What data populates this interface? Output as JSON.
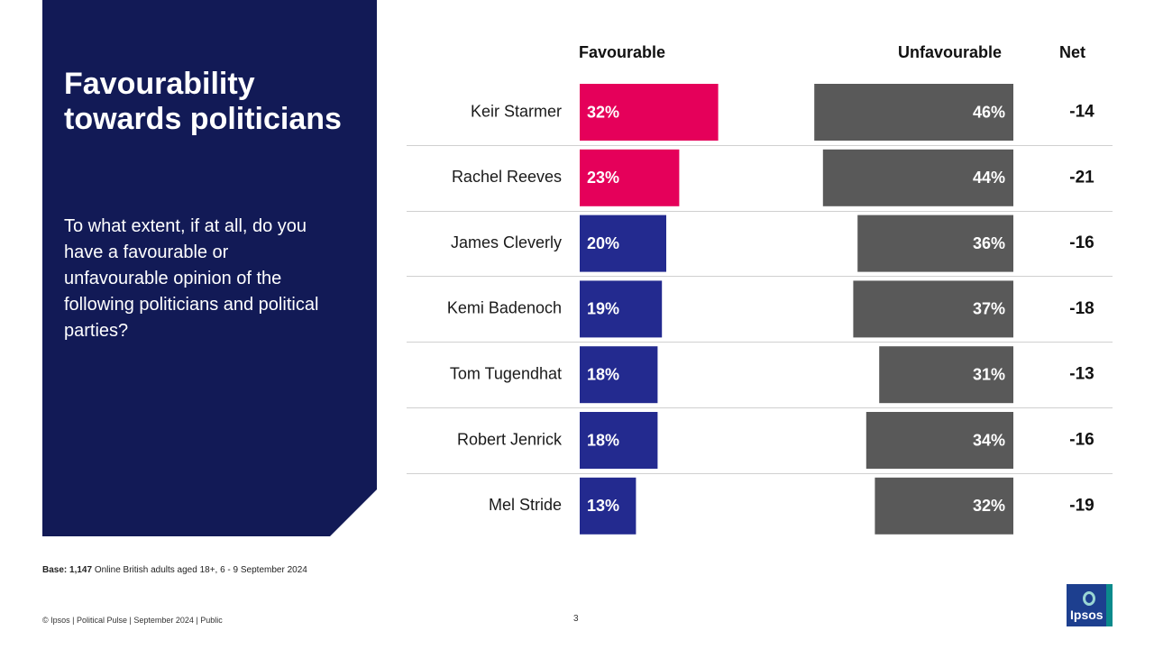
{
  "slide": {
    "title": "Favourability towards politicians",
    "question": "To what extent, if at all, do you have a favourable or unfavourable opinion of the following politicians and political parties?",
    "base_label": "Base:",
    "base_value": "1,147",
    "base_text": "Online British adults aged 18+,  6 - 9 September 2024",
    "footer": "© Ipsos | Political Pulse | September 2024 | Public",
    "page_number": "3",
    "logo_text": "Ipsos"
  },
  "chart_data": {
    "type": "bar",
    "columns": {
      "favourable": "Favourable",
      "unfavourable": "Unfavourable",
      "net": "Net"
    },
    "categories": [
      "Keir Starmer",
      "Rachel Reeves",
      "James Cleverly",
      "Kemi Badenoch",
      "Tom Tugendhat",
      "Robert Jenrick",
      "Mel Stride"
    ],
    "series": [
      {
        "name": "Favourable",
        "values": [
          32,
          23,
          20,
          19,
          18,
          18,
          13
        ]
      },
      {
        "name": "Unfavourable",
        "values": [
          46,
          44,
          36,
          37,
          31,
          34,
          32
        ]
      }
    ],
    "net": [
      "-14",
      "-21",
      "-16",
      "-18",
      "-13",
      "-16",
      "-19"
    ],
    "value_suffix": "%",
    "colors": {
      "favourable_labour": "#e5005a",
      "favourable_conservative": "#232a8f",
      "unfavourable": "#595959",
      "panel": "#121a56"
    },
    "favourable_color_keys": [
      "favourable_labour",
      "favourable_labour",
      "favourable_conservative",
      "favourable_conservative",
      "favourable_conservative",
      "favourable_conservative",
      "favourable_conservative"
    ]
  }
}
